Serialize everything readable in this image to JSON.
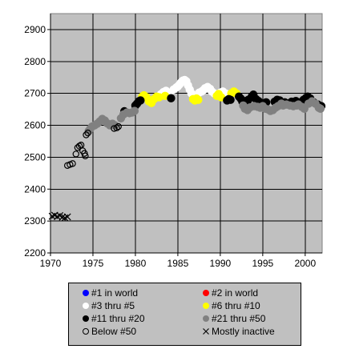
{
  "chart_data": {
    "type": "scatter",
    "title": "",
    "xlabel": "",
    "ylabel": "",
    "xlim": [
      1970,
      2002
    ],
    "ylim": [
      2200,
      2950
    ],
    "x_ticks": [
      "1970",
      "1975",
      "1980",
      "1985",
      "1990",
      "1995",
      "2000"
    ],
    "y_ticks": [
      "2200",
      "2300",
      "2400",
      "2500",
      "2600",
      "2700",
      "2800",
      "2900"
    ],
    "grid": true,
    "plot_background": "#c0c0c0",
    "legend_position": "bottom",
    "series": [
      {
        "name": "#1 in world",
        "color": "#0000ff",
        "marker": "dot",
        "points": []
      },
      {
        "name": "#2 in world",
        "color": "#ff0000",
        "marker": "dot",
        "points": []
      },
      {
        "name": "#3 thru #5",
        "color": "#ffffff",
        "marker": "dot",
        "points": [
          [
            1983.0,
            2697
          ],
          [
            1983.3,
            2704
          ],
          [
            1983.6,
            2708
          ],
          [
            1984.0,
            2700
          ],
          [
            1984.5,
            2712
          ],
          [
            1984.8,
            2718
          ],
          [
            1985.0,
            2722
          ],
          [
            1985.2,
            2728
          ],
          [
            1985.4,
            2735
          ],
          [
            1985.6,
            2740
          ],
          [
            1985.8,
            2742
          ],
          [
            1986.0,
            2738
          ],
          [
            1986.2,
            2725
          ],
          [
            1986.4,
            2712
          ],
          [
            1986.6,
            2700
          ],
          [
            1987.5,
            2702
          ],
          [
            1987.8,
            2706
          ],
          [
            1988.0,
            2710
          ],
          [
            1988.2,
            2716
          ],
          [
            1988.5,
            2720
          ],
          [
            1988.8,
            2714
          ],
          [
            1989.0,
            2706
          ],
          [
            1989.3,
            2700
          ],
          [
            1990.0,
            2702
          ],
          [
            1990.3,
            2706
          ],
          [
            1990.6,
            2700
          ]
        ]
      },
      {
        "name": "#6 thru #10",
        "color": "#ffff00",
        "marker": "dot",
        "points": [
          [
            1980.8,
            2690
          ],
          [
            1981.0,
            2694
          ],
          [
            1981.3,
            2688
          ],
          [
            1981.6,
            2675
          ],
          [
            1981.9,
            2670
          ],
          [
            1982.2,
            2682
          ],
          [
            1982.5,
            2690
          ],
          [
            1982.8,
            2688
          ],
          [
            1983.5,
            2692
          ],
          [
            1986.8,
            2682
          ],
          [
            1987.0,
            2678
          ],
          [
            1987.2,
            2684
          ],
          [
            1987.4,
            2680
          ],
          [
            1989.6,
            2692
          ],
          [
            1989.8,
            2698
          ],
          [
            1990.1,
            2688
          ],
          [
            1991.3,
            2700
          ],
          [
            1991.6,
            2706
          ],
          [
            1991.9,
            2700
          ]
        ]
      },
      {
        "name": "#11 thru #20",
        "color": "#000000",
        "marker": "dot",
        "points": [
          [
            1978.7,
            2644
          ],
          [
            1980.0,
            2662
          ],
          [
            1980.2,
            2668
          ],
          [
            1980.4,
            2675
          ],
          [
            1980.6,
            2678
          ],
          [
            1984.2,
            2685
          ],
          [
            1990.8,
            2678
          ],
          [
            1991.0,
            2682
          ],
          [
            1991.2,
            2680
          ],
          [
            1992.2,
            2690
          ],
          [
            1992.4,
            2684
          ],
          [
            1992.6,
            2674
          ],
          [
            1993.0,
            2676
          ],
          [
            1993.3,
            2680
          ],
          [
            1993.7,
            2690
          ],
          [
            1993.9,
            2696
          ],
          [
            1994.2,
            2682
          ],
          [
            1994.5,
            2676
          ],
          [
            1994.8,
            2670
          ],
          [
            1995.1,
            2668
          ],
          [
            1995.4,
            2672
          ],
          [
            1996.4,
            2674
          ],
          [
            1996.7,
            2680
          ],
          [
            1997.0,
            2678
          ],
          [
            1997.6,
            2672
          ],
          [
            1998.0,
            2668
          ],
          [
            1998.4,
            2674
          ],
          [
            1998.9,
            2676
          ],
          [
            1999.4,
            2672
          ],
          [
            1999.8,
            2680
          ],
          [
            2000.1,
            2686
          ],
          [
            2000.3,
            2690
          ],
          [
            2000.6,
            2684
          ],
          [
            2001.0,
            2672
          ],
          [
            2001.5,
            2665
          ],
          [
            2001.9,
            2660
          ]
        ]
      },
      {
        "name": "#21 thru #50",
        "color": "#808080",
        "marker": "dot",
        "points": [
          [
            1974.5,
            2582
          ],
          [
            1974.7,
            2590
          ],
          [
            1974.9,
            2596
          ],
          [
            1975.2,
            2600
          ],
          [
            1975.5,
            2605
          ],
          [
            1975.8,
            2612
          ],
          [
            1976.1,
            2620
          ],
          [
            1976.4,
            2615
          ],
          [
            1976.7,
            2606
          ],
          [
            1977.0,
            2600
          ],
          [
            1977.3,
            2605
          ],
          [
            1977.6,
            2600
          ],
          [
            1978.3,
            2622
          ],
          [
            1978.6,
            2634
          ],
          [
            1979.0,
            2640
          ],
          [
            1979.3,
            2638
          ],
          [
            1979.6,
            2640
          ],
          [
            1979.9,
            2645
          ],
          [
            1992.7,
            2662
          ],
          [
            1992.9,
            2652
          ],
          [
            1993.2,
            2648
          ],
          [
            1993.5,
            2656
          ],
          [
            1994.0,
            2660
          ],
          [
            1994.4,
            2658
          ],
          [
            1994.7,
            2655
          ],
          [
            1995.0,
            2660
          ],
          [
            1995.3,
            2652
          ],
          [
            1995.6,
            2650
          ],
          [
            1995.9,
            2645
          ],
          [
            1996.2,
            2648
          ],
          [
            1996.5,
            2655
          ],
          [
            1996.8,
            2660
          ],
          [
            1997.2,
            2668
          ],
          [
            1997.4,
            2662
          ],
          [
            1997.8,
            2665
          ],
          [
            1998.2,
            2662
          ],
          [
            1998.6,
            2660
          ],
          [
            1999.0,
            2662
          ],
          [
            1999.2,
            2665
          ],
          [
            1999.6,
            2658
          ],
          [
            1999.9,
            2652
          ],
          [
            2000.4,
            2668
          ],
          [
            2000.8,
            2675
          ],
          [
            2001.2,
            2668
          ],
          [
            2001.6,
            2655
          ],
          [
            2001.8,
            2652
          ]
        ]
      },
      {
        "name": "Below #50",
        "color": "#000000",
        "marker": "ring",
        "points": [
          [
            1972.0,
            2474
          ],
          [
            1972.3,
            2477
          ],
          [
            1972.6,
            2480
          ],
          [
            1973.0,
            2510
          ],
          [
            1973.2,
            2530
          ],
          [
            1973.4,
            2535
          ],
          [
            1973.6,
            2538
          ],
          [
            1973.8,
            2520
          ],
          [
            1974.0,
            2512
          ],
          [
            1974.1,
            2504
          ],
          [
            1974.2,
            2570
          ],
          [
            1974.4,
            2576
          ],
          [
            1977.5,
            2590
          ],
          [
            1977.8,
            2592
          ],
          [
            1978.0,
            2596
          ]
        ]
      },
      {
        "name": "Mostly inactive",
        "color": "#000000",
        "marker": "cross",
        "points": [
          [
            1970.2,
            2315
          ],
          [
            1970.5,
            2318
          ],
          [
            1970.8,
            2314
          ],
          [
            1971.1,
            2317
          ],
          [
            1971.4,
            2312
          ],
          [
            1971.7,
            2310
          ],
          [
            1972.0,
            2313
          ]
        ]
      }
    ]
  }
}
